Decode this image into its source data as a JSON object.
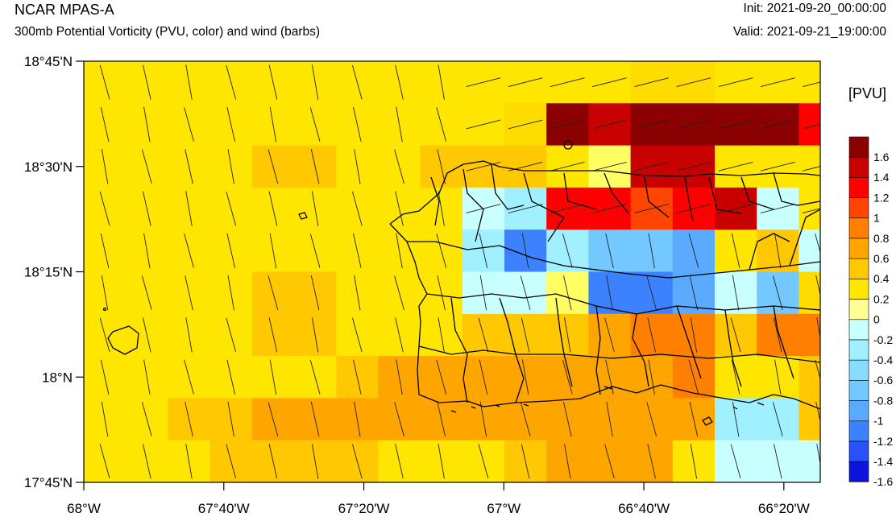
{
  "header": {
    "model": "NCAR MPAS-A",
    "subtitle": "300mb Potential Vorticity (PVU, color) and wind (barbs)",
    "init": "Init: 2021-09-20_00:00:00",
    "valid": "Valid: 2021-09-21_19:00:00"
  },
  "colorbar": {
    "title": "[PVU]",
    "labels": [
      "1.6",
      "1.4",
      "1.2",
      "1",
      "0.8",
      "0.6",
      "0.4",
      "0.2",
      "0",
      "-0.2",
      "-0.4",
      "-0.6",
      "-0.8",
      "-1",
      "-1.2",
      "-1.4",
      "-1.6"
    ],
    "colors": [
      "#8b0000",
      "#c80000",
      "#ff0000",
      "#ff4500",
      "#ff7f00",
      "#ffa500",
      "#ffc800",
      "#ffe600",
      "#ffff96",
      "#c8ffff",
      "#a0f0ff",
      "#87dcff",
      "#73c8ff",
      "#5aaaff",
      "#3c82ff",
      "#2850ff",
      "#0a14dc"
    ]
  },
  "axes": {
    "lat_labels": [
      "18°45'N",
      "18°30'N",
      "18°15'N",
      "18°N",
      "17°45'N"
    ],
    "lon_labels": [
      "68°W",
      "67°40'W",
      "67°20'W",
      "67°W",
      "66°40'W",
      "66°20'W"
    ]
  },
  "map_data": {
    "lon_range": [
      -68.0,
      -66.2
    ],
    "lat_range": [
      17.75,
      18.75
    ],
    "grid_rows": 10,
    "grid_cols": 18,
    "pv_grid": [
      "777777777777788777",
      "77777777778121111R",
      "777766776667022777",
      "777777777UTRR3R2S7",
      "777777777TPTGGN76V",
      "777766777UU0PPLVQ8",
      "777766777666544644",
      "777777655555554776",
      "776655555555555TT6",
      "777666677765557SSS"
    ]
  }
}
